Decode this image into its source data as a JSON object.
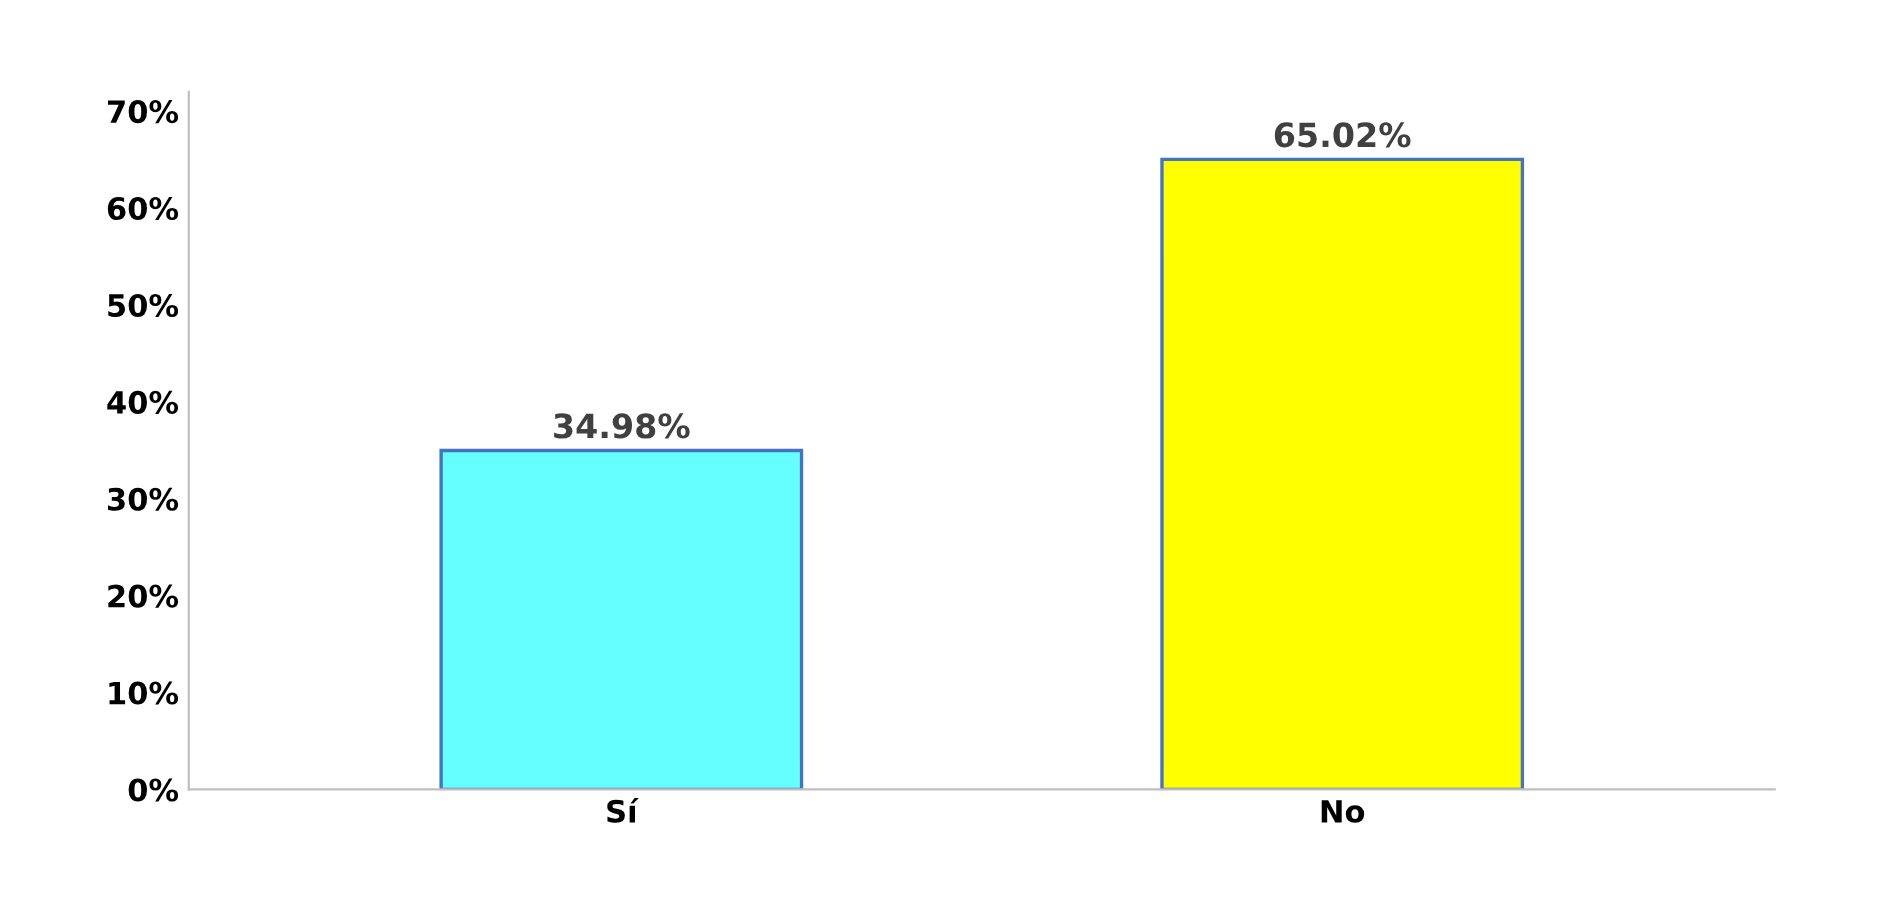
{
  "chart_data": {
    "type": "bar",
    "categories": [
      "Sí",
      "No"
    ],
    "values": [
      34.98,
      65.02
    ],
    "colors": [
      "#66ffff",
      "#ffff00"
    ],
    "value_labels": [
      "34.98%",
      "65.02%"
    ],
    "ylim": [
      0,
      72
    ],
    "yticks": [
      {
        "value": 0,
        "label": "0%"
      },
      {
        "value": 10,
        "label": "10%"
      },
      {
        "value": 20,
        "label": "20%"
      },
      {
        "value": 30,
        "label": "30%"
      },
      {
        "value": 40,
        "label": "40%"
      },
      {
        "value": 50,
        "label": "50%"
      },
      {
        "value": 60,
        "label": "60%"
      },
      {
        "value": 70,
        "label": "70%"
      }
    ],
    "grid": false
  }
}
